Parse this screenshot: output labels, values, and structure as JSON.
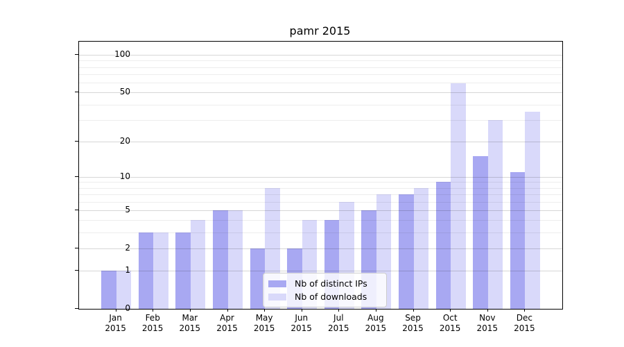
{
  "chart_data": {
    "type": "bar",
    "title": "pamr 2015",
    "categories": [
      "Jan 2015",
      "Feb 2015",
      "Mar 2015",
      "Apr 2015",
      "May 2015",
      "Jun 2015",
      "Jul 2015",
      "Aug 2015",
      "Sep 2015",
      "Oct 2015",
      "Nov 2015",
      "Dec 2015"
    ],
    "series": [
      {
        "name": "Nb of distinct IPs",
        "color": "#a8a8f2",
        "values": [
          1,
          3,
          3,
          5,
          2,
          2,
          4,
          5,
          7,
          9,
          15,
          11
        ]
      },
      {
        "name": "Nb of downloads",
        "color": "#d9d9fa",
        "values": [
          1,
          3,
          4,
          5,
          8,
          4,
          6,
          7,
          8,
          59,
          30,
          35
        ]
      }
    ],
    "xlabel": "",
    "ylabel": "",
    "yscale": "log1p",
    "ylim": [
      0,
      128
    ],
    "yticks_major": [
      0,
      1,
      2,
      5,
      10,
      20,
      50,
      100
    ],
    "yticks_minor": [
      3,
      4,
      6,
      7,
      8,
      9,
      30,
      40,
      60,
      70,
      80,
      90
    ],
    "grid": true,
    "grid_over_bars": true,
    "legend_position": "lower center",
    "frame_color": "#000000",
    "major_grid_color": "#d6d6d6",
    "minor_grid_color": "#ededed"
  }
}
